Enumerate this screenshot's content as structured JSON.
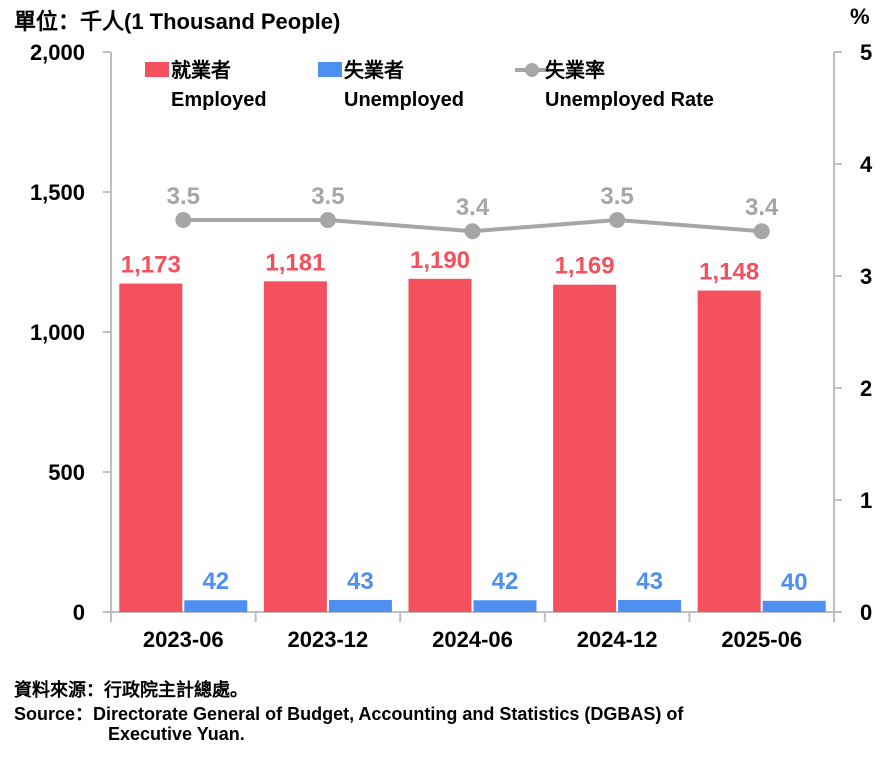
{
  "header": {
    "unit": "單位：千人(1 Thousand People)",
    "right_unit": "%"
  },
  "footer": {
    "line1": "資料來源：行政院主計總處。",
    "line2": "Source：Directorate General of Budget, Accounting and Statistics (DGBAS) of",
    "line3": "Executive Yuan."
  },
  "colors": {
    "employed": "#f5505e",
    "unemployed": "#4f8ff2",
    "rate": "#a6a6a6",
    "employed_label": "#f5505e",
    "unemployed_label": "#4f8ff2",
    "rate_label": "#a6a6a6",
    "axis": "#bfbfbf"
  },
  "chart_data": {
    "type": "bar",
    "categories": [
      "2023-06",
      "2023-12",
      "2024-06",
      "2024-12",
      "2025-06"
    ],
    "series": [
      {
        "name": "就業者 Employed",
        "name_zh": "就業者",
        "name_en": "Employed",
        "type": "bar",
        "axis": "left",
        "values": [
          1173,
          1181,
          1190,
          1169,
          1148
        ],
        "labels": [
          "1,173",
          "1,181",
          "1,190",
          "1,169",
          "1,148"
        ]
      },
      {
        "name": "失業者 Unemployed",
        "name_zh": "失業者",
        "name_en": "Unemployed",
        "type": "bar",
        "axis": "left",
        "values": [
          42,
          43,
          42,
          43,
          40
        ],
        "labels": [
          "42",
          "43",
          "42",
          "43",
          "40"
        ]
      },
      {
        "name": "失業率 Unemployed Rate",
        "name_zh": "失業率",
        "name_en": "Unemployed Rate",
        "type": "line",
        "axis": "right",
        "values": [
          3.5,
          3.5,
          3.4,
          3.5,
          3.4
        ],
        "labels": [
          "3.5",
          "3.5",
          "3.4",
          "3.5",
          "3.4"
        ]
      }
    ],
    "y_left": {
      "ylim": [
        0,
        2000
      ],
      "ticks": [
        0,
        500,
        1000,
        1500,
        2000
      ],
      "tick_labels": [
        "0",
        "500",
        "1,000",
        "1,500",
        "2,000"
      ]
    },
    "y_right": {
      "ylim": [
        0,
        5
      ],
      "ticks": [
        0,
        1,
        2,
        3,
        4,
        5
      ],
      "tick_labels": [
        "0",
        "1",
        "2",
        "3",
        "4",
        "5"
      ]
    },
    "grid": false,
    "legend_position": "top"
  }
}
